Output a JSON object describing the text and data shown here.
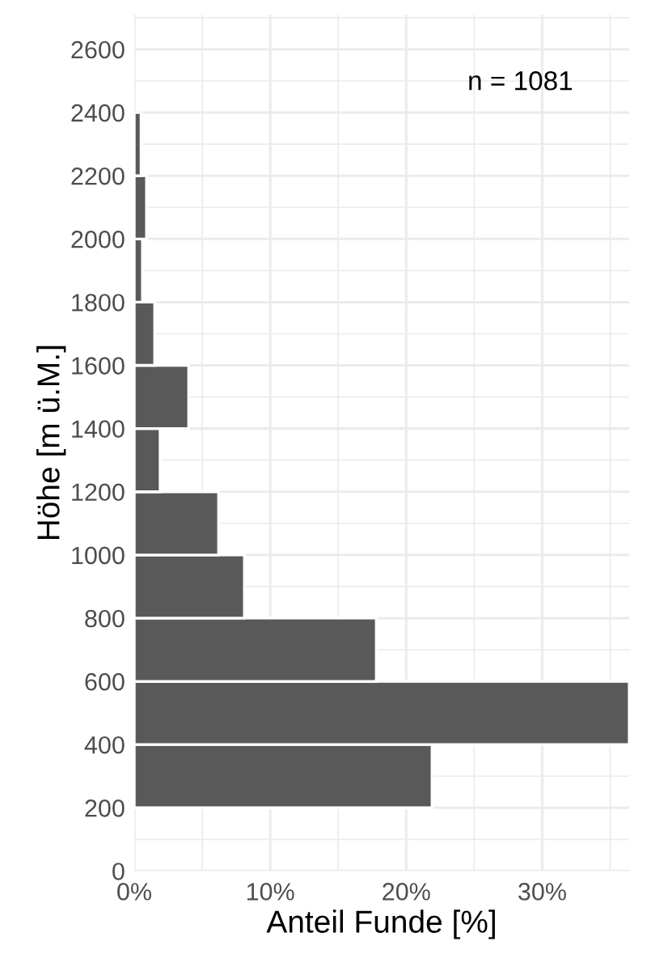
{
  "chart_data": {
    "type": "histogram",
    "orientation": "horizontal",
    "bins": [
      200,
      400,
      600,
      800,
      1000,
      1200,
      1400,
      1600,
      1800,
      2000,
      2200,
      2400
    ],
    "values": [
      21.9,
      36.4,
      17.8,
      8.1,
      6.2,
      1.9,
      4.0,
      1.5,
      0.6,
      0.9,
      0.5
    ],
    "color": "#595959",
    "xlabel": "Anteil Funde [%]",
    "ylabel": "Höhe [m ü.M.]",
    "xlim": [
      0,
      36.4
    ],
    "xticks": [
      {
        "value": 0,
        "label": "0%"
      },
      {
        "value": 10,
        "label": "10%"
      },
      {
        "value": 20,
        "label": "20%"
      },
      {
        "value": 30,
        "label": "30%"
      }
    ],
    "ylim": [
      0,
      2710
    ],
    "yticks": [
      0,
      200,
      400,
      600,
      800,
      1000,
      1200,
      1400,
      1600,
      1800,
      2000,
      2200,
      2400,
      2600
    ],
    "grid": true,
    "annotations": [
      "n = 1081"
    ]
  }
}
